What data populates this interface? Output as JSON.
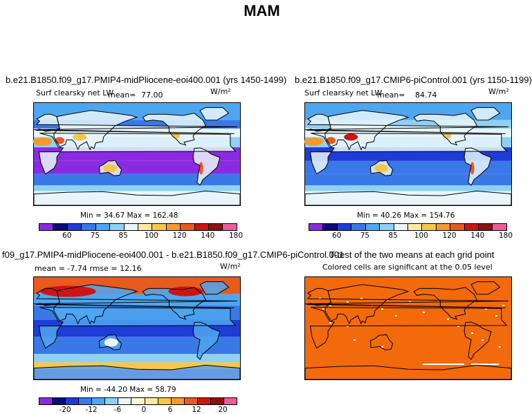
{
  "figure": {
    "title": "MAM"
  },
  "chart_data": [
    {
      "type": "heatmap",
      "title": "b.e21.B1850.f09_g17.PMIP4-midPliocene-eoi400.001 (yrs 1450-1499)",
      "subtitle": "Surf clearsky net LW",
      "stat_label": "mean=",
      "stat_value": "77.00",
      "units": "W/m²",
      "min_text": "Min =  34.67 Max = 162.48",
      "min": 34.67,
      "max": 162.48,
      "mean": 77.0,
      "colorbar_ticks": [
        "60",
        "75",
        "85",
        "100",
        "120",
        "140",
        "180"
      ]
    },
    {
      "type": "heatmap",
      "title": "b.e21.B1850.f09_g17.CMIP6-piControl.001 (yrs 1150-1199)",
      "subtitle": "Surf clearsky net LW",
      "stat_label": "mean=",
      "stat_value": "84.74",
      "units": "W/m²",
      "min_text": "Min =  40.26 Max = 154.76",
      "min": 40.26,
      "max": 154.76,
      "mean": 84.74,
      "colorbar_ticks": [
        "60",
        "75",
        "85",
        "100",
        "120",
        "140",
        "180"
      ]
    },
    {
      "type": "heatmap",
      "title": "f09_g17.PMIP4-midPliocene-eoi400.001 - b.e21.B1850.f09_g17.CMIP6-piControl.001",
      "subtitle": "mean =  -7.74     rmse =  12.16",
      "units": "W/m²",
      "min_text": "Min = -44.20 Max =  58.79",
      "mean": -7.74,
      "rmse": 12.16,
      "min": -44.2,
      "max": 58.79,
      "colorbar_ticks": [
        "-20",
        "-12",
        "-6",
        "0",
        "6",
        "12",
        "20"
      ]
    },
    {
      "type": "heatmap",
      "title": "T-test of the two means at each grid point",
      "subtitle": "Colored cells are significant at the 0.05 level",
      "significance_level": 0.05
    }
  ],
  "colors": {
    "abs_scale": [
      "#8a2be2",
      "#0b0b7a",
      "#1e3cd6",
      "#3a78e8",
      "#4fa6f0",
      "#8fd0f5",
      "#e8f6fb",
      "#ffe9a0",
      "#f7c64a",
      "#f29a2e",
      "#e85a1e",
      "#cc1414",
      "#8a1212",
      "#ee5a9a"
    ],
    "diff_scale": [
      "#8a2be2",
      "#0b0b7a",
      "#1e3cd6",
      "#3a78e8",
      "#4fa6f0",
      "#8fd0f5",
      "#e8f6fb",
      "#fff8d0",
      "#ffe9a0",
      "#f7c64a",
      "#f29a2e",
      "#e85a1e",
      "#cc1414",
      "#8a1212",
      "#ee5a9a"
    ],
    "significance": "#f26a0c"
  }
}
